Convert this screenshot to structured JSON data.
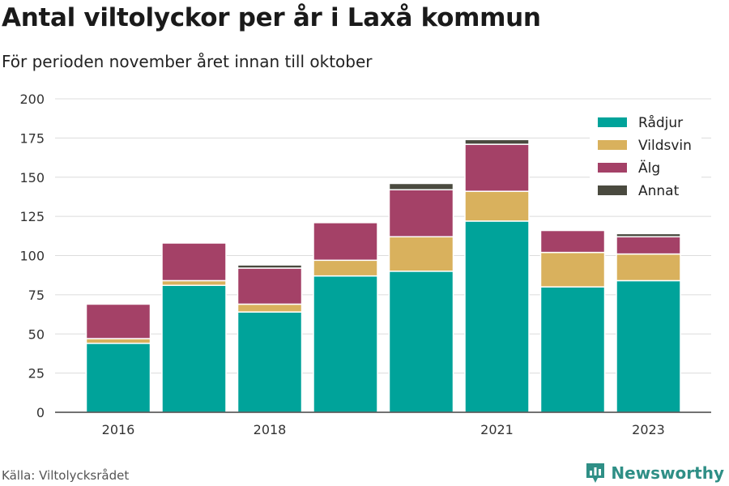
{
  "header": {
    "title": "Antal viltolyckor per år i Laxå kommun",
    "subtitle": "För perioden november året innan till oktober"
  },
  "footer": {
    "source": "Källa: Viltolycksrådet",
    "brand": "Newsworthy",
    "brand_color": "#2f8f86"
  },
  "chart_data": {
    "type": "bar",
    "stacked": true,
    "categories": [
      "2016",
      "2017",
      "2018",
      "2019",
      "2020",
      "2021",
      "2022",
      "2023"
    ],
    "x_tick_labels": [
      "2016",
      "",
      "2018",
      "",
      "",
      "2021",
      "",
      "2023"
    ],
    "ylim": [
      0,
      200
    ],
    "yticks": [
      0,
      25,
      50,
      75,
      100,
      125,
      150,
      175,
      200
    ],
    "grid": true,
    "legend_position": "top-right",
    "series": [
      {
        "name": "Rådjur",
        "color": "#00a39a",
        "values": [
          44,
          81,
          64,
          87,
          90,
          122,
          80,
          84
        ]
      },
      {
        "name": "Vildsvin",
        "color": "#d9b15d",
        "values": [
          3,
          3,
          5,
          10,
          22,
          19,
          22,
          17
        ]
      },
      {
        "name": "Älg",
        "color": "#a44167",
        "values": [
          22,
          24,
          23,
          24,
          30,
          30,
          14,
          11
        ]
      },
      {
        "name": "Annat",
        "color": "#4a4a3f",
        "values": [
          0,
          0,
          2,
          0,
          4,
          3,
          0,
          2
        ]
      }
    ]
  }
}
